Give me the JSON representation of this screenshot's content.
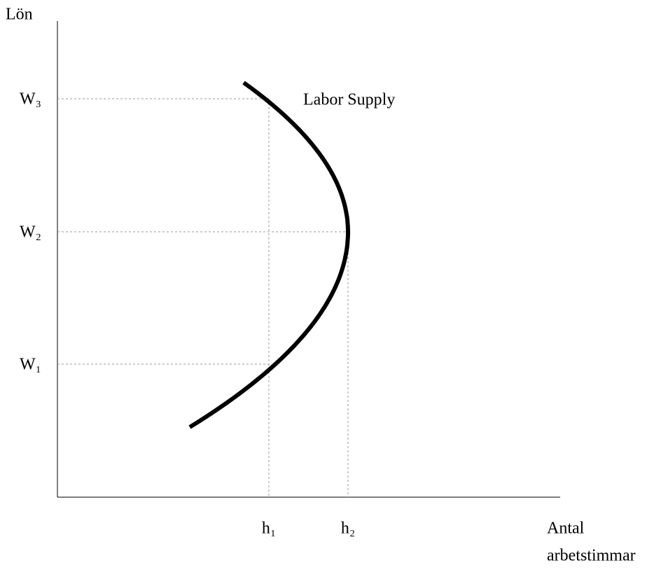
{
  "y_axis_label": "Lön",
  "x_axis_label": [
    "Antal",
    "arbetstimmar"
  ],
  "wage_labels": [
    "W₃",
    "W₂",
    "W₁"
  ],
  "hour_labels": [
    "h₁",
    "h₂"
  ],
  "curve_label": "Labor Supply"
}
